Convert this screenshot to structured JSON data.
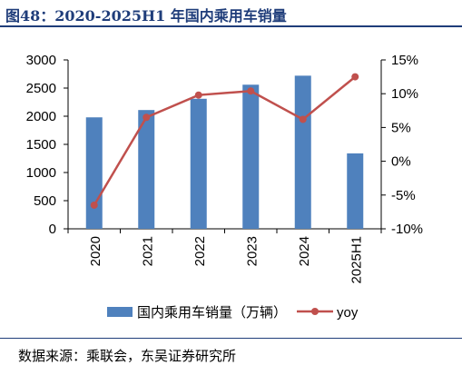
{
  "figure": {
    "title": "图48：2020-2025H1 年国内乘用车销量",
    "source": "数据来源：乘联会，东吴证券研究所"
  },
  "colors": {
    "bar": "#4F81BD",
    "line": "#C0504D",
    "title": "#1F3D7A"
  },
  "chart_data": {
    "type": "bar",
    "title": "",
    "xlabel": "",
    "categories": [
      "2020",
      "2021",
      "2022",
      "2023",
      "2024",
      "2025H1"
    ],
    "series": [
      {
        "name": "国内乘用车销量（万辆）",
        "type": "bar",
        "axis": "left",
        "values": [
          1980,
          2110,
          2310,
          2560,
          2720,
          1340
        ]
      },
      {
        "name": "yoy",
        "type": "line",
        "axis": "right",
        "values": [
          -6.5,
          6.5,
          9.8,
          10.4,
          6.2,
          12.5
        ]
      }
    ],
    "y_left": {
      "ylim": [
        0,
        3000
      ],
      "ticks": [
        "0",
        "500",
        "1000",
        "1500",
        "2000",
        "2500",
        "3000"
      ]
    },
    "y_right": {
      "ylim": [
        -10,
        15
      ],
      "ticks": [
        "-10%",
        "-5%",
        "0%",
        "5%",
        "10%",
        "15%"
      ]
    },
    "legend": {
      "position": "bottom"
    },
    "grid": false
  }
}
